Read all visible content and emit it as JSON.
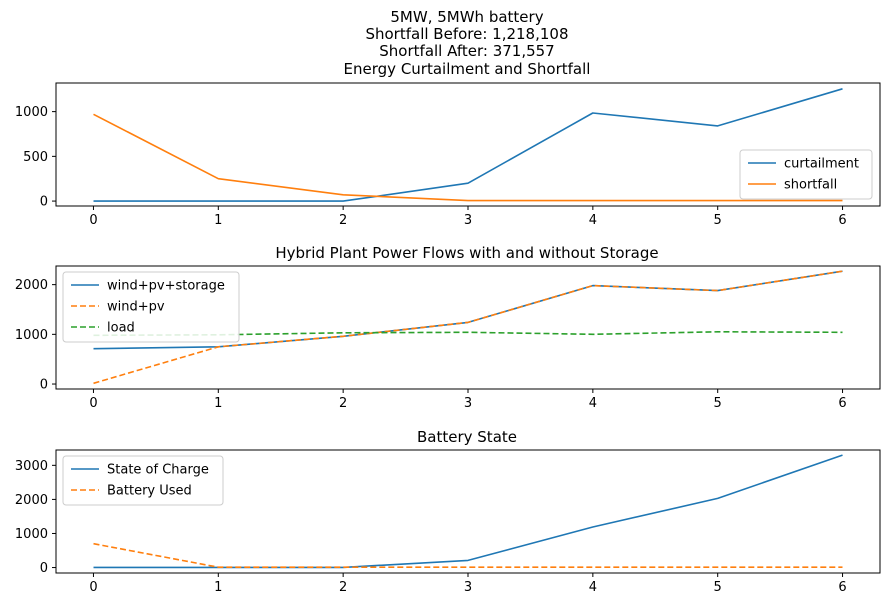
{
  "figure": {
    "title_lines": [
      "5MW, 5MWh battery",
      "Shortfall Before: 1,218,108",
      "Shortfall After: 371,557"
    ]
  },
  "chart_data": [
    {
      "type": "line",
      "title": "Energy Curtailment and Shortfall",
      "x": [
        0,
        1,
        2,
        3,
        4,
        5,
        6
      ],
      "xticks": [
        0,
        1,
        2,
        3,
        4,
        5,
        6
      ],
      "yticks": [
        0,
        500,
        1000
      ],
      "ylim": [
        -55,
        1320
      ],
      "legend": "lower-right",
      "series": [
        {
          "name": "curtailment",
          "color": "#1f77b4",
          "dash": false,
          "values": [
            0,
            0,
            0,
            200,
            985,
            840,
            1255
          ]
        },
        {
          "name": "shortfall",
          "color": "#ff7f0e",
          "dash": false,
          "values": [
            970,
            250,
            70,
            5,
            5,
            5,
            5
          ]
        }
      ]
    },
    {
      "type": "line",
      "title": "Hybrid Plant Power Flows with and without Storage",
      "x": [
        0,
        1,
        2,
        3,
        4,
        5,
        6
      ],
      "xticks": [
        0,
        1,
        2,
        3,
        4,
        5,
        6
      ],
      "yticks": [
        0,
        1000,
        2000
      ],
      "ylim": [
        -100,
        2375
      ],
      "legend": "upper-left",
      "series": [
        {
          "name": "wind+pv+storage",
          "color": "#1f77b4",
          "dash": false,
          "values": [
            710,
            750,
            960,
            1240,
            1980,
            1880,
            2270
          ]
        },
        {
          "name": "wind+pv",
          "color": "#ff7f0e",
          "dash": true,
          "values": [
            15,
            750,
            960,
            1240,
            1980,
            1880,
            2270
          ]
        },
        {
          "name": "load",
          "color": "#2ca02c",
          "dash": true,
          "values": [
            980,
            990,
            1030,
            1040,
            1000,
            1050,
            1040
          ]
        }
      ]
    },
    {
      "type": "line",
      "title": "Battery State",
      "x": [
        0,
        1,
        2,
        3,
        4,
        5,
        6
      ],
      "xticks": [
        0,
        1,
        2,
        3,
        4,
        5,
        6
      ],
      "yticks": [
        0,
        1000,
        2000,
        3000
      ],
      "ylim": [
        -160,
        3450
      ],
      "legend": "upper-left",
      "series": [
        {
          "name": "State of Charge",
          "color": "#1f77b4",
          "dash": false,
          "values": [
            5,
            5,
            5,
            210,
            1190,
            2030,
            3300
          ]
        },
        {
          "name": "Battery Used",
          "color": "#ff7f0e",
          "dash": true,
          "values": [
            700,
            10,
            10,
            10,
            10,
            10,
            10
          ]
        }
      ]
    }
  ]
}
